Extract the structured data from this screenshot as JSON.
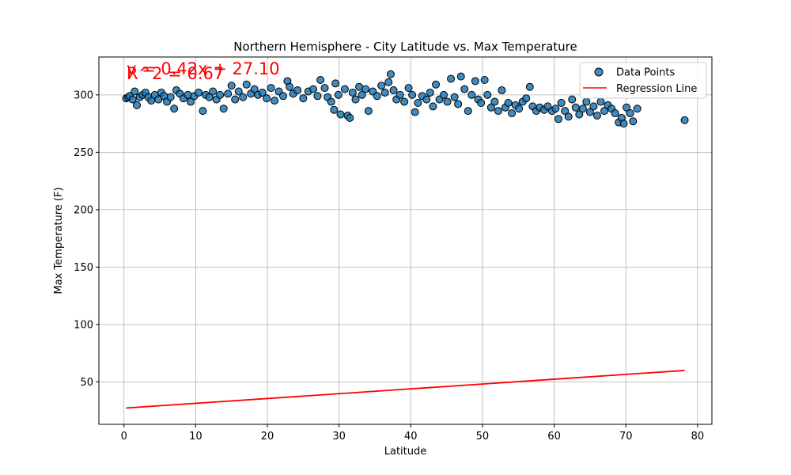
{
  "chart_data": {
    "type": "scatter",
    "title": "Northern Hemisphere - City Latitude vs. Max Temperature",
    "xlabel": "Latitude",
    "ylabel": "Max Temperature (F)",
    "xlim": [
      -3.5,
      82
    ],
    "ylim": [
      13,
      333
    ],
    "xticks": [
      0,
      10,
      20,
      30,
      40,
      50,
      60,
      70,
      80
    ],
    "yticks": [
      50,
      100,
      150,
      200,
      250,
      300
    ],
    "grid": true,
    "legend_position": "top-right",
    "annotations": [
      "y = 0.42x + 27.10",
      "R^2 = 0.67"
    ],
    "series": [
      {
        "name": "Data Points",
        "kind": "scatter",
        "color": "#1f77b4",
        "edgecolor": "#000000",
        "points": [
          [
            0.3,
            297
          ],
          [
            0.6,
            298
          ],
          [
            0.8,
            299
          ],
          [
            1.2,
            296
          ],
          [
            1.5,
            303
          ],
          [
            1.8,
            291
          ],
          [
            2.2,
            298
          ],
          [
            2.6,
            300
          ],
          [
            3.0,
            302
          ],
          [
            3.4,
            298
          ],
          [
            3.8,
            295
          ],
          [
            4.3,
            300
          ],
          [
            4.8,
            296
          ],
          [
            5.2,
            302
          ],
          [
            5.6,
            299
          ],
          [
            6.0,
            294
          ],
          [
            6.5,
            298
          ],
          [
            7.0,
            288
          ],
          [
            7.3,
            304
          ],
          [
            7.8,
            301
          ],
          [
            8.3,
            297
          ],
          [
            8.9,
            300
          ],
          [
            9.3,
            294
          ],
          [
            9.8,
            299
          ],
          [
            10.4,
            302
          ],
          [
            11.0,
            286
          ],
          [
            11.4,
            300
          ],
          [
            11.9,
            298
          ],
          [
            12.4,
            303
          ],
          [
            12.9,
            296
          ],
          [
            13.4,
            300
          ],
          [
            13.9,
            288
          ],
          [
            14.5,
            301
          ],
          [
            15.0,
            308
          ],
          [
            15.5,
            296
          ],
          [
            16.0,
            303
          ],
          [
            16.6,
            298
          ],
          [
            17.1,
            309
          ],
          [
            17.7,
            301
          ],
          [
            18.2,
            305
          ],
          [
            18.7,
            300
          ],
          [
            19.3,
            302
          ],
          [
            19.9,
            297
          ],
          [
            20.5,
            306
          ],
          [
            21.0,
            295
          ],
          [
            21.6,
            303
          ],
          [
            22.2,
            299
          ],
          [
            22.8,
            312
          ],
          [
            23.1,
            307
          ],
          [
            23.6,
            301
          ],
          [
            24.2,
            304
          ],
          [
            25.0,
            297
          ],
          [
            25.7,
            303
          ],
          [
            26.4,
            305
          ],
          [
            27.0,
            299
          ],
          [
            27.4,
            313
          ],
          [
            28.0,
            306
          ],
          [
            28.4,
            298
          ],
          [
            28.9,
            294
          ],
          [
            29.3,
            287
          ],
          [
            29.5,
            310
          ],
          [
            29.9,
            300
          ],
          [
            30.2,
            283
          ],
          [
            30.8,
            305
          ],
          [
            31.2,
            282
          ],
          [
            31.5,
            280
          ],
          [
            31.9,
            302
          ],
          [
            32.3,
            296
          ],
          [
            32.8,
            307
          ],
          [
            33.2,
            300
          ],
          [
            33.7,
            305
          ],
          [
            34.1,
            286
          ],
          [
            34.7,
            303
          ],
          [
            35.3,
            299
          ],
          [
            35.9,
            308
          ],
          [
            36.4,
            302
          ],
          [
            36.9,
            311
          ],
          [
            37.2,
            318
          ],
          [
            37.6,
            304
          ],
          [
            38.0,
            296
          ],
          [
            38.5,
            300
          ],
          [
            39.1,
            294
          ],
          [
            39.7,
            306
          ],
          [
            40.2,
            300
          ],
          [
            40.6,
            285
          ],
          [
            41.0,
            293
          ],
          [
            41.6,
            299
          ],
          [
            42.2,
            296
          ],
          [
            42.7,
            302
          ],
          [
            43.1,
            290
          ],
          [
            43.5,
            309
          ],
          [
            44.0,
            296
          ],
          [
            44.6,
            300
          ],
          [
            45.1,
            294
          ],
          [
            45.6,
            314
          ],
          [
            46.1,
            298
          ],
          [
            46.6,
            292
          ],
          [
            47.0,
            316
          ],
          [
            47.5,
            305
          ],
          [
            48.0,
            286
          ],
          [
            48.5,
            300
          ],
          [
            49.0,
            312
          ],
          [
            49.4,
            296
          ],
          [
            49.8,
            293
          ],
          [
            50.3,
            313
          ],
          [
            50.7,
            300
          ],
          [
            51.2,
            289
          ],
          [
            51.7,
            294
          ],
          [
            52.2,
            286
          ],
          [
            52.7,
            304
          ],
          [
            53.2,
            289
          ],
          [
            53.6,
            293
          ],
          [
            54.1,
            284
          ],
          [
            54.6,
            291
          ],
          [
            55.1,
            288
          ],
          [
            55.6,
            294
          ],
          [
            56.1,
            297
          ],
          [
            56.6,
            307
          ],
          [
            57.0,
            290
          ],
          [
            57.5,
            286
          ],
          [
            58.0,
            289
          ],
          [
            58.6,
            287
          ],
          [
            59.1,
            290
          ],
          [
            59.7,
            286
          ],
          [
            60.2,
            288
          ],
          [
            60.6,
            279
          ],
          [
            61.0,
            293
          ],
          [
            61.5,
            286
          ],
          [
            62.0,
            281
          ],
          [
            62.5,
            296
          ],
          [
            63.0,
            289
          ],
          [
            63.5,
            283
          ],
          [
            64.0,
            288
          ],
          [
            64.5,
            294
          ],
          [
            65.0,
            285
          ],
          [
            65.5,
            290
          ],
          [
            66.0,
            282
          ],
          [
            66.5,
            294
          ],
          [
            67.0,
            286
          ],
          [
            67.5,
            291
          ],
          [
            68.0,
            288
          ],
          [
            68.5,
            284
          ],
          [
            69.0,
            276
          ],
          [
            69.4,
            280
          ],
          [
            69.7,
            275
          ],
          [
            70.1,
            289
          ],
          [
            70.6,
            284
          ],
          [
            71.0,
            277
          ],
          [
            71.6,
            288
          ],
          [
            78.2,
            278
          ]
        ]
      },
      {
        "name": "Regression Line",
        "kind": "line",
        "color": "#ff0000",
        "slope": 0.42,
        "intercept": 27.1,
        "x_range": [
          0.3,
          78.2
        ]
      }
    ]
  }
}
